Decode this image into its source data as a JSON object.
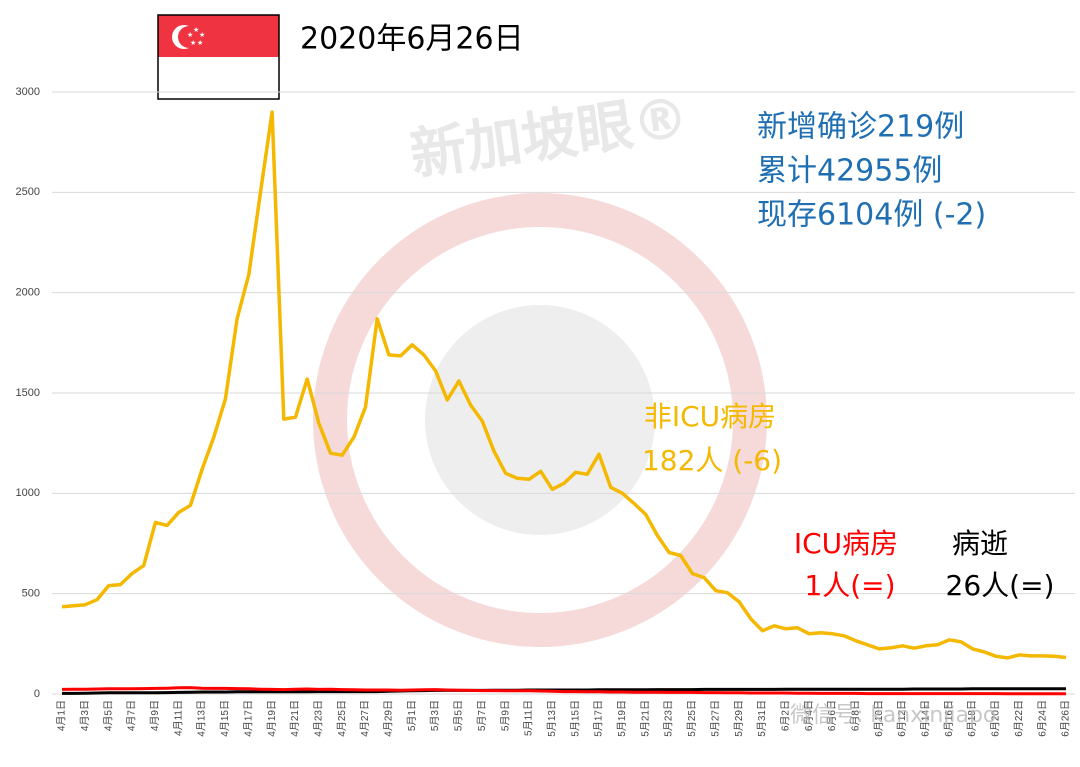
{
  "chart_data": {
    "type": "line",
    "title": "2020年6月26日",
    "stats": [
      "新增确诊219例",
      "累计42955例",
      "现存6104例 (-2)"
    ],
    "stats_color": "#1f6fb2",
    "watermark": "新加坡眼®",
    "footer": "微信号: kanxinjiapo",
    "categories": [
      "4月1日",
      null,
      "4月3日",
      null,
      "4月5日",
      null,
      "4月7日",
      null,
      "4月9日",
      null,
      "4月11日",
      null,
      "4月13日",
      null,
      "4月15日",
      null,
      "4月17日",
      null,
      "4月19日",
      null,
      "4月21日",
      null,
      "4月23日",
      null,
      "4月25日",
      null,
      "4月27日",
      null,
      "4月29日",
      null,
      "5月1日",
      null,
      "5月3日",
      null,
      "5月5日",
      null,
      "5月7日",
      null,
      "5月9日",
      null,
      "5月11日",
      null,
      "5月13日",
      null,
      "5月15日",
      null,
      "5月17日",
      null,
      "5月19日",
      null,
      "5月21日",
      null,
      "5月23日",
      null,
      "5月25日",
      null,
      "5月27日",
      null,
      "5月29日",
      null,
      "5月31日",
      null,
      "6月2日",
      null,
      "6月4日",
      null,
      "6月6日",
      null,
      "6月8日",
      null,
      "6月10日",
      null,
      "6月12日",
      null,
      "6月14日",
      null,
      "6月16日",
      null,
      "6月18日",
      null,
      "6月20日",
      null,
      "6月22日",
      null,
      "6月24日",
      null,
      "6月26日"
    ],
    "series": [
      {
        "name": "非ICU病房",
        "value_label": "182人 (-6)",
        "color": "#f5b800",
        "values": [
          435,
          440,
          445,
          470,
          540,
          545,
          600,
          640,
          855,
          840,
          905,
          940,
          1120,
          1280,
          1470,
          1870,
          2090,
          2500,
          2900,
          1370,
          1380,
          1570,
          1350,
          1200,
          1190,
          1280,
          1430,
          1870,
          1690,
          1685,
          1740,
          1690,
          1610,
          1465,
          1560,
          1440,
          1360,
          1210,
          1100,
          1075,
          1070,
          1110,
          1020,
          1050,
          1105,
          1095,
          1195,
          1030,
          1000,
          950,
          895,
          790,
          705,
          690,
          600,
          580,
          515,
          505,
          460,
          375,
          315,
          340,
          325,
          330,
          300,
          305,
          300,
          290,
          265,
          245,
          225,
          230,
          240,
          228,
          240,
          245,
          270,
          260,
          225,
          210,
          188,
          180,
          195,
          190,
          190,
          188,
          182
        ]
      },
      {
        "name": "ICU病房",
        "value_label": "1人(=)",
        "color": "#ff0000",
        "values": [
          23,
          24,
          24,
          25,
          26,
          26,
          26,
          27,
          28,
          29,
          31,
          32,
          29,
          28,
          28,
          27,
          26,
          24,
          23,
          22,
          24,
          25,
          23,
          24,
          22,
          21,
          20,
          20,
          20,
          19,
          20,
          21,
          22,
          20,
          19,
          18,
          17,
          17,
          16,
          16,
          16,
          15,
          14,
          12,
          12,
          11,
          11,
          10,
          10,
          9,
          9,
          9,
          8,
          8,
          8,
          7,
          7,
          6,
          6,
          5,
          5,
          5,
          5,
          4,
          4,
          3,
          3,
          3,
          3,
          2,
          2,
          2,
          2,
          2,
          2,
          2,
          2,
          2,
          2,
          2,
          2,
          1,
          1,
          1,
          1,
          1,
          1
        ]
      },
      {
        "name": "病逝",
        "value_label": "26人(=)",
        "color": "#000000",
        "values": [
          3,
          3,
          4,
          5,
          6,
          6,
          6,
          6,
          6,
          7,
          8,
          9,
          10,
          10,
          10,
          11,
          11,
          11,
          11,
          11,
          11,
          11,
          12,
          12,
          12,
          12,
          12,
          12,
          14,
          15,
          16,
          17,
          18,
          18,
          18,
          18,
          18,
          19,
          19,
          19,
          20,
          20,
          20,
          20,
          20,
          20,
          21,
          21,
          21,
          21,
          21,
          22,
          22,
          22,
          22,
          23,
          23,
          23,
          23,
          23,
          23,
          23,
          24,
          24,
          24,
          24,
          24,
          24,
          24,
          24,
          24,
          24,
          24,
          25,
          25,
          25,
          25,
          25,
          26,
          26,
          26,
          26,
          26,
          26,
          26,
          26,
          26
        ]
      }
    ],
    "ylim": [
      0,
      3000
    ],
    "yticks": [
      0,
      500,
      1000,
      1500,
      2000,
      2500,
      3000
    ],
    "grid": true
  }
}
